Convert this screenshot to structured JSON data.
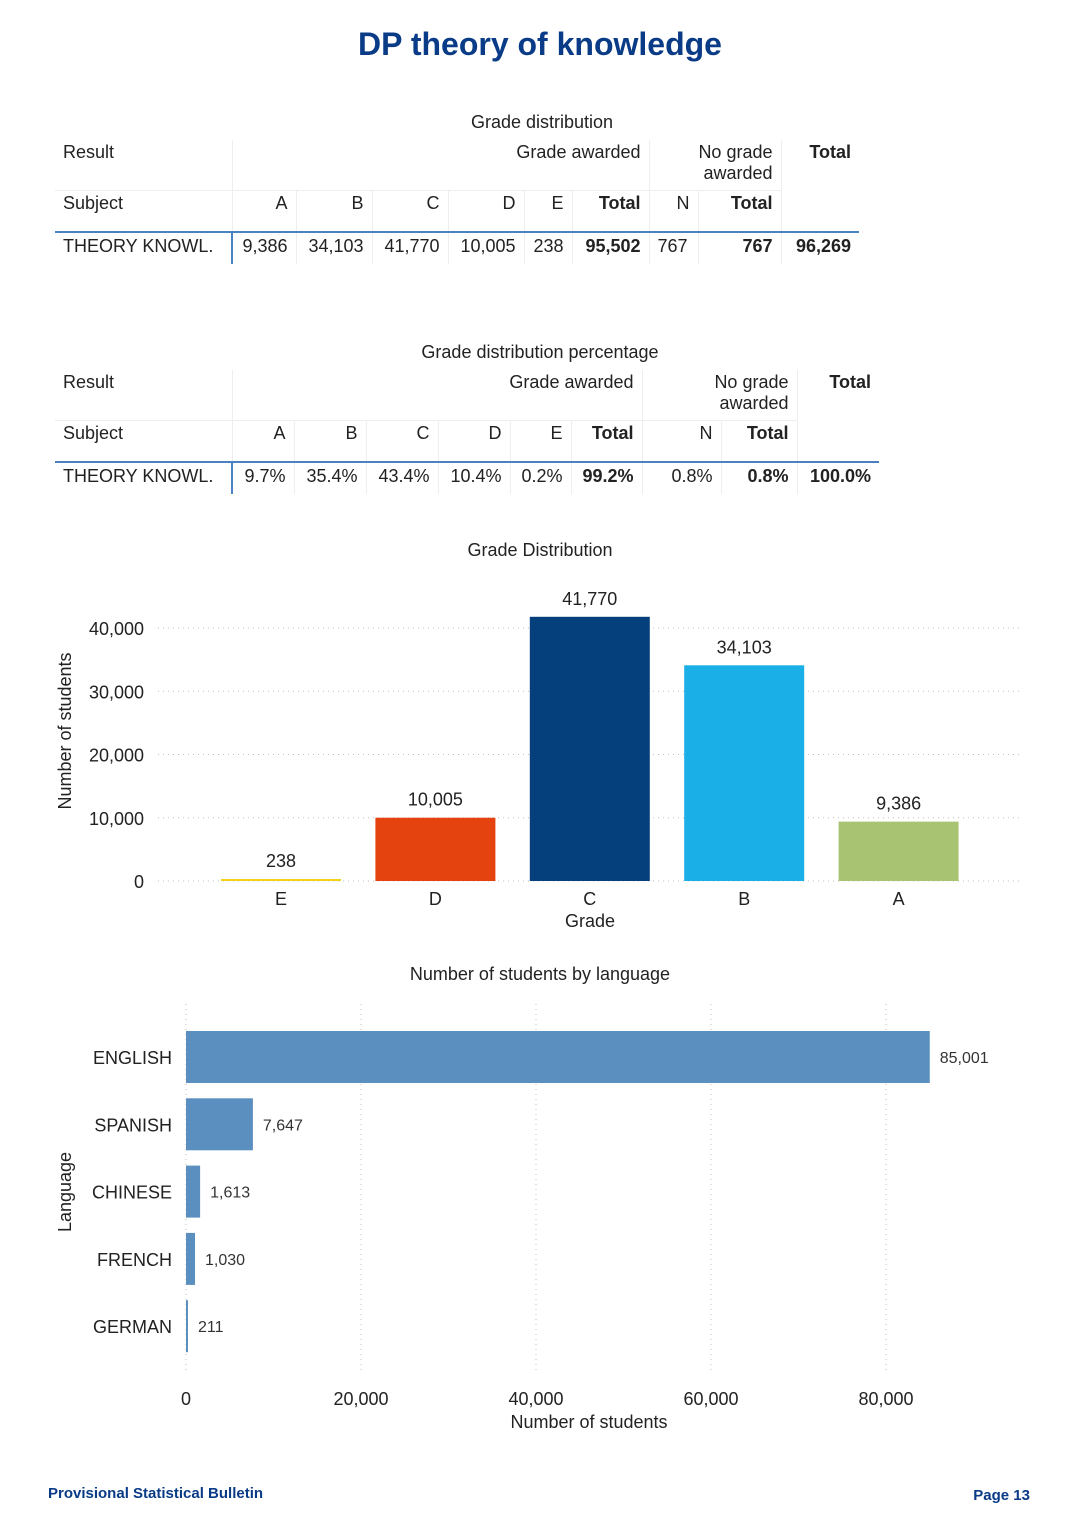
{
  "page_title": "DP theory of knowledge",
  "table1": {
    "caption": "Grade distribution",
    "result_label": "Result",
    "grade_awarded": "Grade awarded",
    "no_grade_awarded": "No grade awarded",
    "total": "Total",
    "subject_label": "Subject",
    "cols": [
      "A",
      "B",
      "C",
      "D",
      "E",
      "Total",
      "N",
      "Total"
    ],
    "row": {
      "subject": "THEORY KNOWL.",
      "values": [
        "9,386",
        "34,103",
        "41,770",
        "10,005",
        "238",
        "95,502",
        "767",
        "767",
        "96,269"
      ]
    }
  },
  "table2": {
    "caption": "Grade distribution percentage",
    "result_label": "Result",
    "grade_awarded": "Grade awarded",
    "no_grade_awarded": "No grade awarded",
    "total": "Total",
    "subject_label": "Subject",
    "cols": [
      "A",
      "B",
      "C",
      "D",
      "E",
      "Total",
      "N",
      "Total"
    ],
    "row": {
      "subject": "THEORY KNOWL.",
      "values": [
        "9.7%",
        "35.4%",
        "43.4%",
        "10.4%",
        "0.2%",
        "99.2%",
        "0.8%",
        "0.8%",
        "100.0%"
      ]
    }
  },
  "chart_data": [
    {
      "type": "bar",
      "title": "Grade Distribution",
      "xlabel": "Grade",
      "ylabel": "Number of students",
      "categories": [
        "E",
        "D",
        "C",
        "B",
        "A"
      ],
      "values": [
        238,
        10005,
        41770,
        34103,
        9386
      ],
      "value_labels": [
        "238",
        "10,005",
        "41,770",
        "34,103",
        "9,386"
      ],
      "colors": [
        "#f2d21b",
        "#e4420f",
        "#053f7c",
        "#1aafe6",
        "#a8c472"
      ],
      "ylim": [
        0,
        40000
      ],
      "yticks": [
        0,
        10000,
        20000,
        30000,
        40000
      ],
      "ytick_labels": [
        "0",
        "10,000",
        "20,000",
        "30,000",
        "40,000"
      ],
      "grid": true
    },
    {
      "type": "bar",
      "orientation": "horizontal",
      "title": "Number of students by language",
      "xlabel": "Number of students",
      "ylabel": "Language",
      "categories": [
        "ENGLISH",
        "SPANISH",
        "CHINESE",
        "FRENCH",
        "GERMAN"
      ],
      "values": [
        85001,
        7647,
        1613,
        1030,
        211
      ],
      "value_labels": [
        "85,001",
        "7,647",
        "1,613",
        "1,030",
        "211"
      ],
      "color": "#5b8fbf",
      "xlim": [
        0,
        80000
      ],
      "xticks": [
        0,
        20000,
        40000,
        60000,
        80000
      ],
      "xtick_labels": [
        "0",
        "20,000",
        "40,000",
        "60,000",
        "80,000"
      ],
      "grid": true
    }
  ],
  "footer": {
    "left": "Provisional Statistical Bulletin",
    "right": "Page 13"
  }
}
